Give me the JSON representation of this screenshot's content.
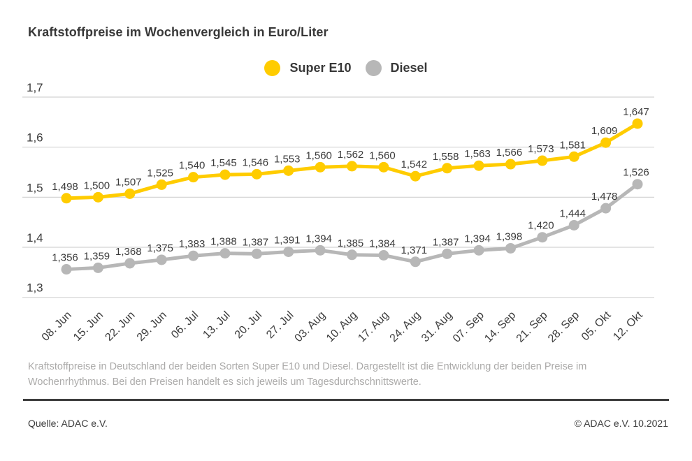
{
  "title": "Kraftstoffpreise im Wochenvergleich in Euro/Liter",
  "legend": [
    {
      "label": "Super E10",
      "color": "#FFCC00"
    },
    {
      "label": "Diesel",
      "color": "#B7B7B7"
    }
  ],
  "chart_data": {
    "type": "line",
    "title": "Kraftstoffpreise im Wochenvergleich in Euro/Liter",
    "categories": [
      "08. Jun",
      "15. Jun",
      "22. Jun",
      "29. Jun",
      "06. Jul",
      "13. Jul",
      "20. Jul",
      "27. Jul",
      "03. Aug",
      "10. Aug",
      "17. Aug",
      "24. Aug",
      "31. Aug",
      "07. Sep",
      "14. Sep",
      "21. Sep",
      "28. Sep",
      "05. Okt",
      "12. Okt"
    ],
    "series": [
      {
        "name": "Super E10",
        "color": "#FFCC00",
        "values": [
          1.498,
          1.5,
          1.507,
          1.525,
          1.54,
          1.545,
          1.546,
          1.553,
          1.56,
          1.562,
          1.56,
          1.542,
          1.558,
          1.563,
          1.566,
          1.573,
          1.581,
          1.609,
          1.647
        ]
      },
      {
        "name": "Diesel",
        "color": "#B7B7B7",
        "values": [
          1.356,
          1.359,
          1.368,
          1.375,
          1.383,
          1.388,
          1.387,
          1.391,
          1.394,
          1.385,
          1.384,
          1.371,
          1.387,
          1.394,
          1.398,
          1.42,
          1.444,
          1.478,
          1.526
        ]
      }
    ],
    "xlabel": "",
    "ylabel": "Euro/Liter",
    "ylim": [
      1.3,
      1.7
    ],
    "yticks": [
      1.7,
      1.6,
      1.5,
      1.4,
      1.3
    ],
    "ytick_labels": [
      "1,7",
      "1,6",
      "1,5",
      "1,4",
      "1,3"
    ],
    "grid": true,
    "legend_position": "top",
    "value_labels": true,
    "value_label_format": "comma-decimal-3",
    "colors": {
      "grid": "#D4D4D4",
      "axis_text": "#3C3C3C",
      "value_label_text": "#3C3C3C"
    }
  },
  "footnote": "Kraftstoffpreise in Deutschland der beiden Sorten Super E10 und Diesel. Dargestellt ist die Entwicklung der beiden Preise im Wochenrhythmus. Bei den Preisen handelt es sich jeweils um Tagesdurchschnittswerte.",
  "source": "Quelle: ADAC e.V.",
  "copyright": "© ADAC e.V. 10.2021"
}
